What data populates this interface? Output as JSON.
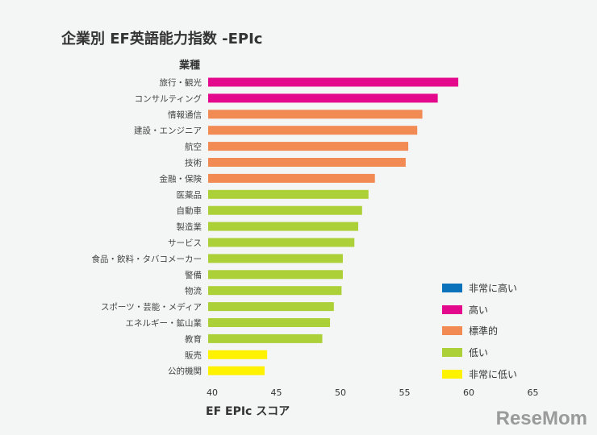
{
  "chart_data": {
    "type": "bar",
    "orientation": "horizontal",
    "title": "企業別 EF英語能力指数 -EPIc",
    "ylabel": "業種",
    "xlabel": "EF EPIc スコア",
    "xlim": [
      40,
      65
    ],
    "xticks": [
      40,
      45,
      50,
      55,
      60,
      65
    ],
    "categories": [
      "旅行・観光",
      "コンサルティング",
      "情報通信",
      "建設・エンジニア",
      "航空",
      "技術",
      "金融・保険",
      "医薬品",
      "自動車",
      "製造業",
      "サービス",
      "食品・飲料・タバコメーカー",
      "警備",
      "物流",
      "スポーツ・芸能・メディア",
      "エネルギー・鉱山業",
      "教育",
      "販売",
      "公的機関"
    ],
    "values": [
      59.5,
      57.9,
      56.7,
      56.3,
      55.6,
      55.4,
      53.0,
      52.5,
      52.0,
      51.7,
      51.4,
      50.5,
      50.5,
      50.4,
      49.8,
      49.5,
      48.9,
      44.6,
      44.4
    ],
    "levels": [
      "high",
      "high",
      "moderate",
      "moderate",
      "moderate",
      "moderate",
      "moderate",
      "low",
      "low",
      "low",
      "low",
      "low",
      "low",
      "low",
      "low",
      "low",
      "low",
      "very_low",
      "very_low"
    ],
    "legend": [
      {
        "key": "very_high",
        "label": "非常に高い",
        "color": "#0a72ba"
      },
      {
        "key": "high",
        "label": "高い",
        "color": "#e4088c"
      },
      {
        "key": "moderate",
        "label": "標準的",
        "color": "#f28a54"
      },
      {
        "key": "low",
        "label": "低い",
        "color": "#acd037"
      },
      {
        "key": "very_low",
        "label": "非常に低い",
        "color": "#fff200"
      }
    ],
    "legend_position": "bottom-right"
  },
  "watermark": "ReseMom"
}
